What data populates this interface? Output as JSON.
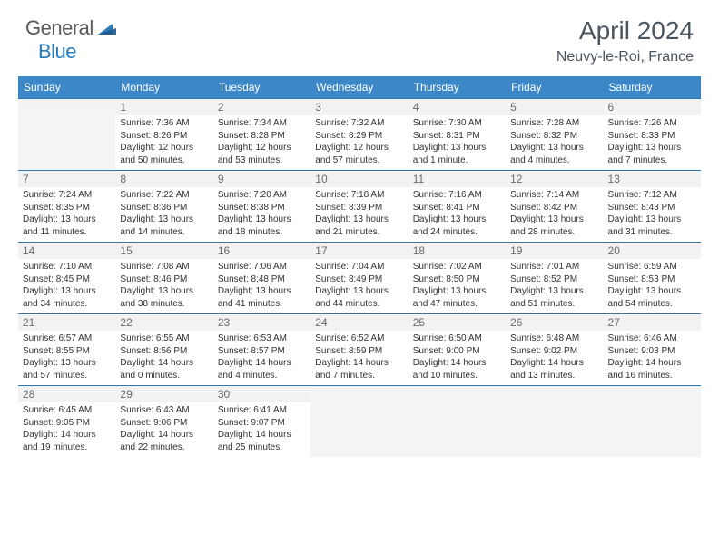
{
  "logo": {
    "general": "General",
    "blue": "Blue"
  },
  "title": "April 2024",
  "location": "Neuvy-le-Roi, France",
  "colors": {
    "header_bg": "#3b87c8",
    "header_text": "#ffffff",
    "border": "#2a7ab8",
    "daynum_bg": "#f2f2f2",
    "empty_bg": "#f4f4f4",
    "logo_general": "#58595b",
    "logo_blue": "#2a7ab8",
    "title_color": "#4a5560"
  },
  "weekdays": [
    "Sunday",
    "Monday",
    "Tuesday",
    "Wednesday",
    "Thursday",
    "Friday",
    "Saturday"
  ],
  "weeks": [
    [
      {
        "n": "",
        "sr": "",
        "ss": "",
        "dl": ""
      },
      {
        "n": "1",
        "sr": "Sunrise: 7:36 AM",
        "ss": "Sunset: 8:26 PM",
        "dl": "Daylight: 12 hours and 50 minutes."
      },
      {
        "n": "2",
        "sr": "Sunrise: 7:34 AM",
        "ss": "Sunset: 8:28 PM",
        "dl": "Daylight: 12 hours and 53 minutes."
      },
      {
        "n": "3",
        "sr": "Sunrise: 7:32 AM",
        "ss": "Sunset: 8:29 PM",
        "dl": "Daylight: 12 hours and 57 minutes."
      },
      {
        "n": "4",
        "sr": "Sunrise: 7:30 AM",
        "ss": "Sunset: 8:31 PM",
        "dl": "Daylight: 13 hours and 1 minute."
      },
      {
        "n": "5",
        "sr": "Sunrise: 7:28 AM",
        "ss": "Sunset: 8:32 PM",
        "dl": "Daylight: 13 hours and 4 minutes."
      },
      {
        "n": "6",
        "sr": "Sunrise: 7:26 AM",
        "ss": "Sunset: 8:33 PM",
        "dl": "Daylight: 13 hours and 7 minutes."
      }
    ],
    [
      {
        "n": "7",
        "sr": "Sunrise: 7:24 AM",
        "ss": "Sunset: 8:35 PM",
        "dl": "Daylight: 13 hours and 11 minutes."
      },
      {
        "n": "8",
        "sr": "Sunrise: 7:22 AM",
        "ss": "Sunset: 8:36 PM",
        "dl": "Daylight: 13 hours and 14 minutes."
      },
      {
        "n": "9",
        "sr": "Sunrise: 7:20 AM",
        "ss": "Sunset: 8:38 PM",
        "dl": "Daylight: 13 hours and 18 minutes."
      },
      {
        "n": "10",
        "sr": "Sunrise: 7:18 AM",
        "ss": "Sunset: 8:39 PM",
        "dl": "Daylight: 13 hours and 21 minutes."
      },
      {
        "n": "11",
        "sr": "Sunrise: 7:16 AM",
        "ss": "Sunset: 8:41 PM",
        "dl": "Daylight: 13 hours and 24 minutes."
      },
      {
        "n": "12",
        "sr": "Sunrise: 7:14 AM",
        "ss": "Sunset: 8:42 PM",
        "dl": "Daylight: 13 hours and 28 minutes."
      },
      {
        "n": "13",
        "sr": "Sunrise: 7:12 AM",
        "ss": "Sunset: 8:43 PM",
        "dl": "Daylight: 13 hours and 31 minutes."
      }
    ],
    [
      {
        "n": "14",
        "sr": "Sunrise: 7:10 AM",
        "ss": "Sunset: 8:45 PM",
        "dl": "Daylight: 13 hours and 34 minutes."
      },
      {
        "n": "15",
        "sr": "Sunrise: 7:08 AM",
        "ss": "Sunset: 8:46 PM",
        "dl": "Daylight: 13 hours and 38 minutes."
      },
      {
        "n": "16",
        "sr": "Sunrise: 7:06 AM",
        "ss": "Sunset: 8:48 PM",
        "dl": "Daylight: 13 hours and 41 minutes."
      },
      {
        "n": "17",
        "sr": "Sunrise: 7:04 AM",
        "ss": "Sunset: 8:49 PM",
        "dl": "Daylight: 13 hours and 44 minutes."
      },
      {
        "n": "18",
        "sr": "Sunrise: 7:02 AM",
        "ss": "Sunset: 8:50 PM",
        "dl": "Daylight: 13 hours and 47 minutes."
      },
      {
        "n": "19",
        "sr": "Sunrise: 7:01 AM",
        "ss": "Sunset: 8:52 PM",
        "dl": "Daylight: 13 hours and 51 minutes."
      },
      {
        "n": "20",
        "sr": "Sunrise: 6:59 AM",
        "ss": "Sunset: 8:53 PM",
        "dl": "Daylight: 13 hours and 54 minutes."
      }
    ],
    [
      {
        "n": "21",
        "sr": "Sunrise: 6:57 AM",
        "ss": "Sunset: 8:55 PM",
        "dl": "Daylight: 13 hours and 57 minutes."
      },
      {
        "n": "22",
        "sr": "Sunrise: 6:55 AM",
        "ss": "Sunset: 8:56 PM",
        "dl": "Daylight: 14 hours and 0 minutes."
      },
      {
        "n": "23",
        "sr": "Sunrise: 6:53 AM",
        "ss": "Sunset: 8:57 PM",
        "dl": "Daylight: 14 hours and 4 minutes."
      },
      {
        "n": "24",
        "sr": "Sunrise: 6:52 AM",
        "ss": "Sunset: 8:59 PM",
        "dl": "Daylight: 14 hours and 7 minutes."
      },
      {
        "n": "25",
        "sr": "Sunrise: 6:50 AM",
        "ss": "Sunset: 9:00 PM",
        "dl": "Daylight: 14 hours and 10 minutes."
      },
      {
        "n": "26",
        "sr": "Sunrise: 6:48 AM",
        "ss": "Sunset: 9:02 PM",
        "dl": "Daylight: 14 hours and 13 minutes."
      },
      {
        "n": "27",
        "sr": "Sunrise: 6:46 AM",
        "ss": "Sunset: 9:03 PM",
        "dl": "Daylight: 14 hours and 16 minutes."
      }
    ],
    [
      {
        "n": "28",
        "sr": "Sunrise: 6:45 AM",
        "ss": "Sunset: 9:05 PM",
        "dl": "Daylight: 14 hours and 19 minutes."
      },
      {
        "n": "29",
        "sr": "Sunrise: 6:43 AM",
        "ss": "Sunset: 9:06 PM",
        "dl": "Daylight: 14 hours and 22 minutes."
      },
      {
        "n": "30",
        "sr": "Sunrise: 6:41 AM",
        "ss": "Sunset: 9:07 PM",
        "dl": "Daylight: 14 hours and 25 minutes."
      },
      {
        "n": "",
        "sr": "",
        "ss": "",
        "dl": ""
      },
      {
        "n": "",
        "sr": "",
        "ss": "",
        "dl": ""
      },
      {
        "n": "",
        "sr": "",
        "ss": "",
        "dl": ""
      },
      {
        "n": "",
        "sr": "",
        "ss": "",
        "dl": ""
      }
    ]
  ]
}
